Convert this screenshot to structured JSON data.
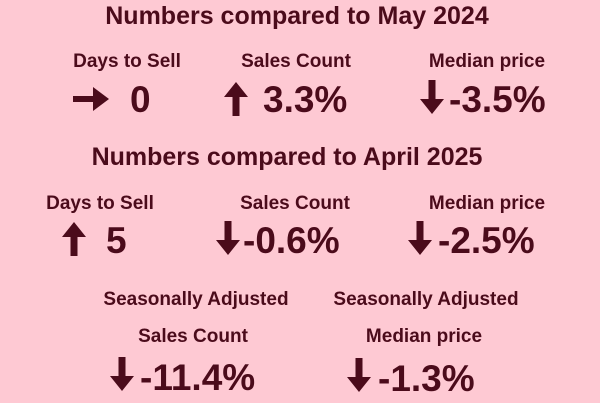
{
  "sections": [
    {
      "title": "Numbers compared to May 2024",
      "metrics": [
        {
          "label": "Days to Sell",
          "value": "0"
        },
        {
          "label": "Sales Count",
          "value": "3.3%"
        },
        {
          "label": "Median price",
          "value": "-3.5%"
        }
      ]
    },
    {
      "title": "Numbers compared to April 2025",
      "metrics": [
        {
          "label": "Days to Sell",
          "value": "5"
        },
        {
          "label": "Sales Count",
          "value": "-0.6%"
        },
        {
          "label": "Median price",
          "value": "-2.5%"
        }
      ]
    }
  ],
  "seasonally_adjusted": [
    {
      "qualifier": "Seasonally Adjusted",
      "label": "Sales Count",
      "value": "-11.4%"
    },
    {
      "qualifier": "Seasonally Adjusted",
      "label": "Median price",
      "value": "-1.3%"
    }
  ]
}
